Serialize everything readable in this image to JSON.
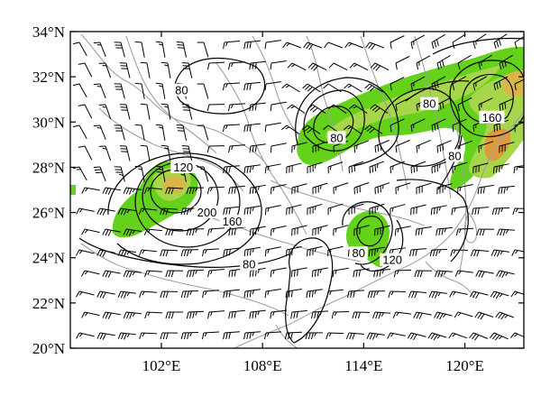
{
  "map": {
    "lat_labels": [
      "34°N",
      "32°N",
      "30°N",
      "28°N",
      "26°N",
      "24°N",
      "22°N",
      "20°N"
    ],
    "lat_values": [
      34,
      32,
      30,
      28,
      26,
      24,
      22,
      20
    ],
    "lon_labels": [
      "102°E",
      "108°E",
      "114°E",
      "120°E"
    ],
    "lon_values": [
      102,
      108,
      114,
      120
    ],
    "extent": {
      "lon_min": 96.6,
      "lon_max": 123.5,
      "lat_min": 20,
      "lat_max": 34
    },
    "contour_labels": [
      {
        "text": "80",
        "lon": 103.2,
        "lat": 31.3
      },
      {
        "text": "120",
        "lon": 103.3,
        "lat": 27.9
      },
      {
        "text": "200",
        "lon": 104.7,
        "lat": 25.9
      },
      {
        "text": "160",
        "lon": 106.2,
        "lat": 25.5
      },
      {
        "text": "80",
        "lon": 107.2,
        "lat": 23.6
      },
      {
        "text": "80",
        "lon": 112.4,
        "lat": 29.2
      },
      {
        "text": "80",
        "lon": 113.7,
        "lat": 24.1
      },
      {
        "text": "120",
        "lon": 115.7,
        "lat": 23.8
      },
      {
        "text": "80",
        "lon": 117.9,
        "lat": 30.7
      },
      {
        "text": "160",
        "lon": 121.6,
        "lat": 30.1
      },
      {
        "text": "80",
        "lon": 119.4,
        "lat": 28.4
      }
    ],
    "shading_colors": {
      "light": "#64d21a",
      "mid": "#a7d64a",
      "high": "#d9b54a",
      "peak": "#e09a3c"
    },
    "line_colors": {
      "contour": "#000000",
      "boundary": "#a0a0a0",
      "barb": "#000000"
    }
  }
}
